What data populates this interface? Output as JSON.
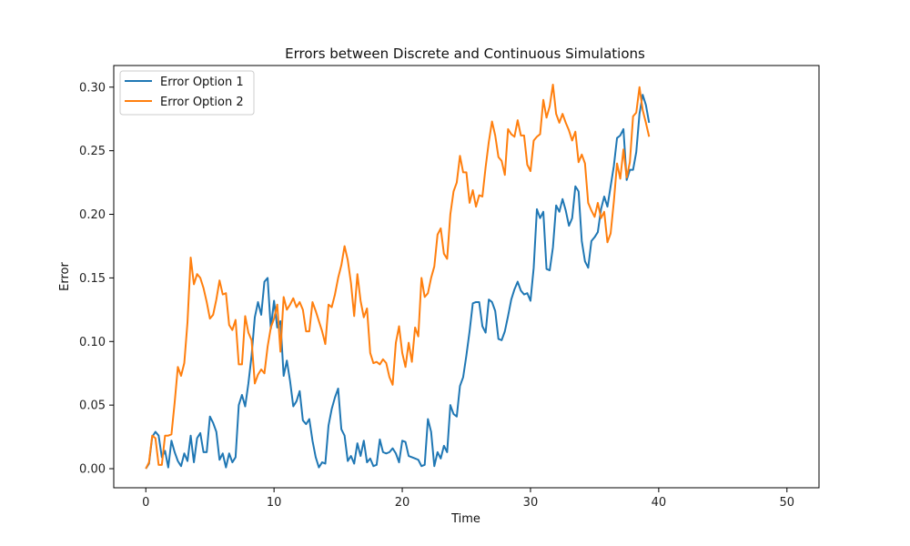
{
  "chart_data": {
    "type": "line",
    "title": "Errors between Discrete and Continuous Simulations",
    "xlabel": "Time",
    "ylabel": "Error",
    "xlim": [
      -2.5,
      52.5
    ],
    "ylim": [
      -0.015,
      0.317
    ],
    "xticks": [
      0,
      10,
      20,
      30,
      40,
      50
    ],
    "xtick_labels": [
      "0",
      "10",
      "20",
      "30",
      "40",
      "50"
    ],
    "yticks": [
      0.0,
      0.05,
      0.1,
      0.15,
      0.2,
      0.25,
      0.3
    ],
    "ytick_labels": [
      "0.00",
      "0.05",
      "0.10",
      "0.15",
      "0.20",
      "0.25",
      "0.30"
    ],
    "grid": false,
    "legend_position": "upper-left",
    "x_start": 0,
    "x_step": 0.25,
    "series": [
      {
        "name": "Error Option 1",
        "color": "#1f77b4",
        "values": [
          0.0,
          0.004,
          0.025,
          0.029,
          0.026,
          0.009,
          0.014,
          0.001,
          0.022,
          0.013,
          0.006,
          0.002,
          0.012,
          0.006,
          0.026,
          0.005,
          0.024,
          0.028,
          0.013,
          0.013,
          0.041,
          0.036,
          0.029,
          0.007,
          0.012,
          0.001,
          0.012,
          0.005,
          0.009,
          0.05,
          0.058,
          0.049,
          0.067,
          0.089,
          0.119,
          0.131,
          0.121,
          0.147,
          0.15,
          0.11,
          0.132,
          0.111,
          0.116,
          0.073,
          0.085,
          0.069,
          0.049,
          0.053,
          0.061,
          0.038,
          0.035,
          0.039,
          0.022,
          0.009,
          0.001,
          0.005,
          0.004,
          0.034,
          0.047,
          0.056,
          0.063,
          0.031,
          0.026,
          0.006,
          0.01,
          0.004,
          0.02,
          0.01,
          0.022,
          0.005,
          0.008,
          0.002,
          0.003,
          0.023,
          0.013,
          0.012,
          0.013,
          0.016,
          0.012,
          0.005,
          0.022,
          0.021,
          0.01,
          0.009,
          0.008,
          0.007,
          0.002,
          0.003,
          0.039,
          0.029,
          0.002,
          0.013,
          0.008,
          0.018,
          0.013,
          0.05,
          0.043,
          0.041,
          0.065,
          0.072,
          0.089,
          0.108,
          0.13,
          0.131,
          0.131,
          0.112,
          0.107,
          0.133,
          0.131,
          0.124,
          0.102,
          0.101,
          0.108,
          0.12,
          0.133,
          0.141,
          0.147,
          0.14,
          0.137,
          0.138,
          0.132,
          0.158,
          0.204,
          0.197,
          0.202,
          0.157,
          0.156,
          0.174,
          0.207,
          0.202,
          0.212,
          0.203,
          0.191,
          0.197,
          0.222,
          0.218,
          0.179,
          0.163,
          0.158,
          0.179,
          0.182,
          0.186,
          0.204,
          0.214,
          0.206,
          0.222,
          0.238,
          0.26,
          0.262,
          0.267,
          0.227,
          0.235,
          0.235,
          0.249,
          0.279,
          0.294,
          0.286,
          0.272
        ]
      },
      {
        "name": "Error Option 2",
        "color": "#ff7f0e",
        "values": [
          0.0,
          0.005,
          0.026,
          0.024,
          0.003,
          0.003,
          0.026,
          0.026,
          0.027,
          0.052,
          0.08,
          0.073,
          0.083,
          0.115,
          0.166,
          0.145,
          0.153,
          0.15,
          0.142,
          0.131,
          0.118,
          0.121,
          0.133,
          0.148,
          0.137,
          0.138,
          0.113,
          0.109,
          0.117,
          0.082,
          0.082,
          0.12,
          0.107,
          0.101,
          0.067,
          0.074,
          0.078,
          0.075,
          0.096,
          0.111,
          0.118,
          0.129,
          0.092,
          0.135,
          0.125,
          0.129,
          0.134,
          0.127,
          0.131,
          0.125,
          0.108,
          0.108,
          0.131,
          0.124,
          0.116,
          0.108,
          0.098,
          0.129,
          0.127,
          0.137,
          0.15,
          0.16,
          0.175,
          0.164,
          0.146,
          0.12,
          0.153,
          0.132,
          0.119,
          0.126,
          0.091,
          0.083,
          0.084,
          0.082,
          0.086,
          0.083,
          0.072,
          0.066,
          0.099,
          0.112,
          0.091,
          0.08,
          0.099,
          0.084,
          0.111,
          0.104,
          0.15,
          0.135,
          0.138,
          0.15,
          0.159,
          0.184,
          0.189,
          0.169,
          0.165,
          0.2,
          0.218,
          0.225,
          0.246,
          0.233,
          0.233,
          0.209,
          0.219,
          0.206,
          0.215,
          0.214,
          0.237,
          0.257,
          0.273,
          0.262,
          0.245,
          0.242,
          0.231,
          0.267,
          0.263,
          0.261,
          0.274,
          0.262,
          0.262,
          0.239,
          0.234,
          0.258,
          0.261,
          0.263,
          0.29,
          0.276,
          0.285,
          0.302,
          0.279,
          0.272,
          0.279,
          0.272,
          0.266,
          0.258,
          0.265,
          0.241,
          0.247,
          0.24,
          0.209,
          0.203,
          0.198,
          0.209,
          0.197,
          0.202,
          0.178,
          0.185,
          0.21,
          0.24,
          0.228,
          0.251,
          0.229,
          0.241,
          0.277,
          0.28,
          0.3,
          0.282,
          0.272,
          0.261
        ]
      }
    ]
  }
}
